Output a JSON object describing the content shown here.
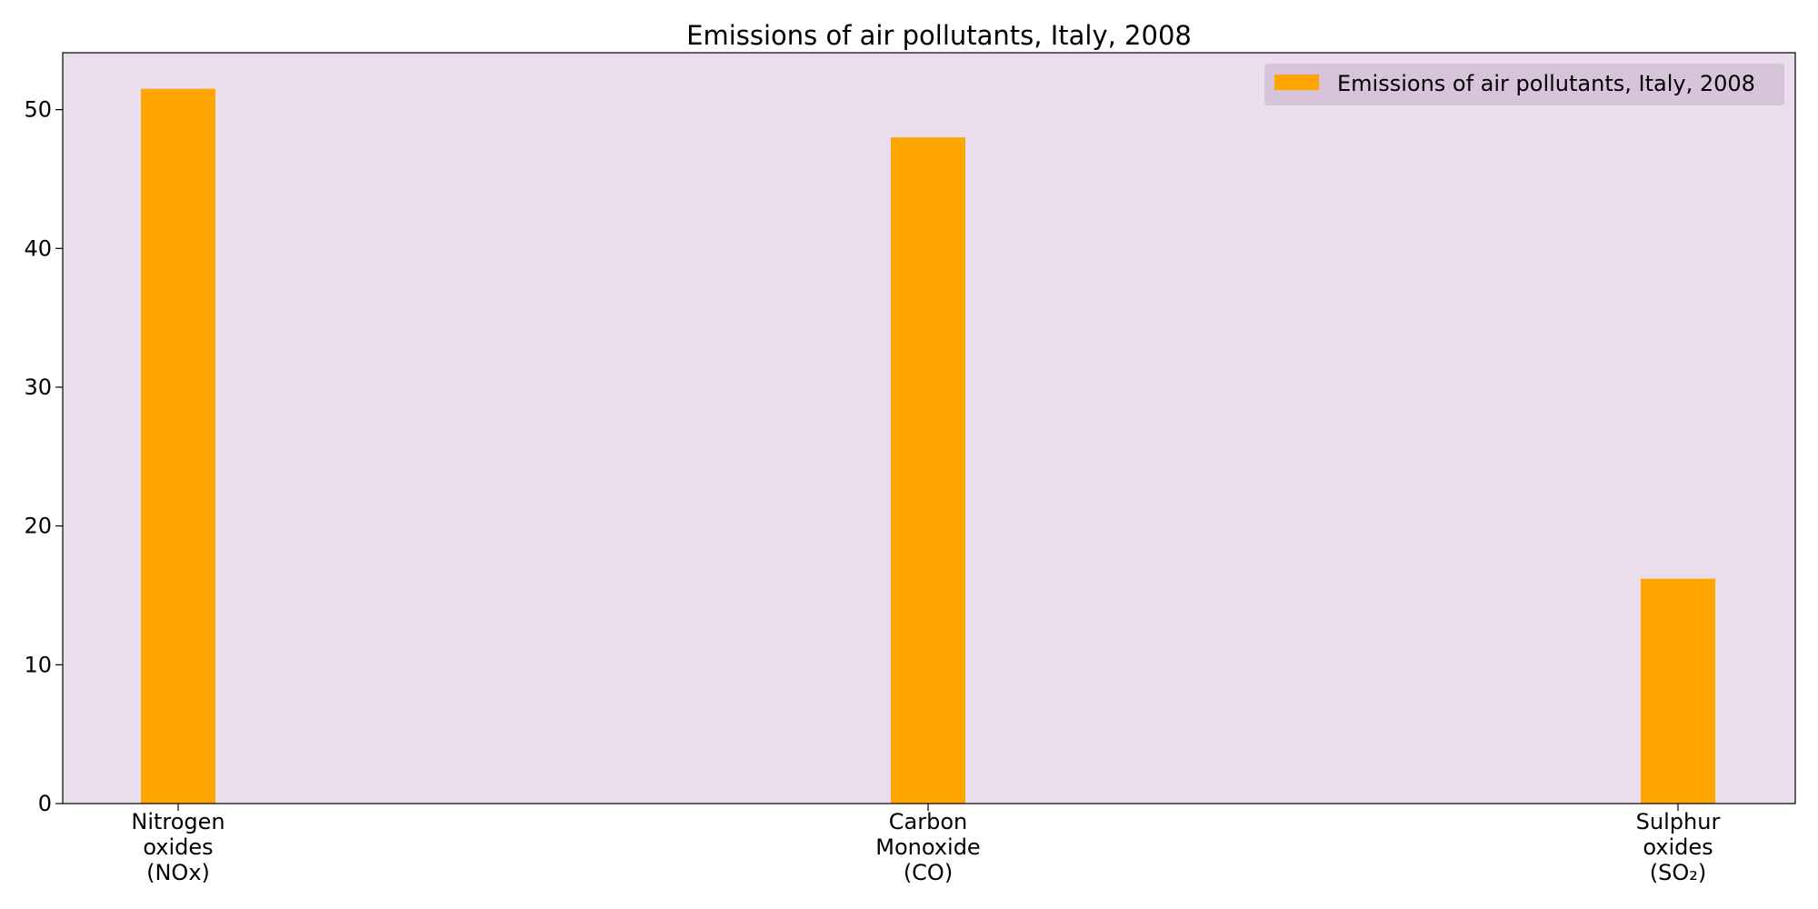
{
  "chart_data": {
    "type": "bar",
    "title": "Emissions of air pollutants, Italy, 2008",
    "xlabel": "",
    "ylabel": "",
    "categories": [
      [
        "Nitrogen",
        "oxides",
        "(NOx)"
      ],
      [
        "Carbon",
        "Monoxide",
        "(CO)"
      ],
      [
        "Sulphur",
        "oxides",
        "(SO₂)"
      ]
    ],
    "series": [
      {
        "name": "Emissions of air pollutants, Italy, 2008",
        "values": [
          51.5,
          48.0,
          16.2
        ],
        "color": "#ffa500"
      }
    ],
    "ylim": [
      0,
      54.1
    ],
    "yticks": [
      0,
      10,
      20,
      30,
      40,
      50
    ],
    "grid": false,
    "legend_position": "top-right",
    "colors": {
      "plot_background": "#eadeed",
      "legend_background": "#d8c4da",
      "bar": "#ffa500",
      "axis": "#000000"
    }
  }
}
